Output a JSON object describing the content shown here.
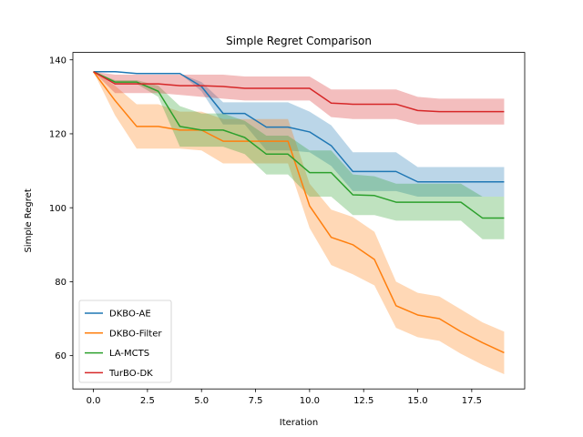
{
  "chart_data": {
    "type": "line",
    "title": "Simple Regret Comparison",
    "xlabel": "Iteration",
    "ylabel": "Simple Regret",
    "xlim": [
      -0.95,
      19.95
    ],
    "ylim": [
      51,
      142
    ],
    "xticks": [
      0.0,
      2.5,
      5.0,
      7.5,
      10.0,
      12.5,
      15.0,
      17.5
    ],
    "xtick_labels": [
      "0.0",
      "2.5",
      "5.0",
      "7.5",
      "10.0",
      "12.5",
      "15.0",
      "17.5"
    ],
    "yticks": [
      60,
      80,
      100,
      120,
      140
    ],
    "ytick_labels": [
      "60",
      "80",
      "100",
      "120",
      "140"
    ],
    "grid": false,
    "legend_position": "lower-left",
    "x": [
      0,
      1,
      2,
      3,
      4,
      5,
      6,
      7,
      8,
      9,
      10,
      11,
      12,
      13,
      14,
      15,
      16,
      17,
      18,
      19
    ],
    "series": [
      {
        "name": "DKBO-AE",
        "color": "#1f77b4",
        "values": [
          136.8,
          136.8,
          136.3,
          136.3,
          136.3,
          132.8,
          125.5,
          125.5,
          121.8,
          121.8,
          120.5,
          116.8,
          109.8,
          109.8,
          109.8,
          107.0,
          107.0,
          107.0,
          107.0,
          107.0
        ],
        "upper": [
          136.8,
          136.8,
          136.3,
          136.3,
          136.3,
          134.0,
          128.5,
          128.5,
          128.5,
          128.5,
          126.0,
          122.3,
          115.0,
          115.0,
          115.0,
          111.0,
          111.0,
          111.0,
          111.0,
          111.0
        ],
        "lower": [
          136.8,
          136.8,
          136.3,
          136.3,
          136.3,
          131.5,
          122.5,
          122.5,
          115.5,
          115.5,
          115.0,
          111.3,
          104.5,
          104.5,
          104.5,
          103.0,
          103.0,
          103.0,
          103.0,
          103.0
        ]
      },
      {
        "name": "DKBO-Filter",
        "color": "#ff7f0e",
        "values": [
          136.8,
          129.0,
          122.0,
          122.0,
          121.0,
          121.0,
          118.0,
          118.0,
          118.0,
          118.0,
          100.5,
          92.0,
          90.0,
          86.0,
          73.5,
          71.0,
          70.0,
          66.5,
          63.5,
          60.8
        ],
        "upper": [
          136.8,
          133.0,
          128.0,
          128.0,
          126.0,
          126.0,
          124.0,
          124.0,
          124.0,
          124.0,
          106.5,
          99.5,
          97.5,
          93.5,
          80.0,
          77.0,
          76.0,
          72.5,
          69.0,
          66.5
        ],
        "lower": [
          136.8,
          125.0,
          116.0,
          116.0,
          116.0,
          115.5,
          112.0,
          112.0,
          112.0,
          112.0,
          94.5,
          84.5,
          82.0,
          79.0,
          67.5,
          65.0,
          64.0,
          60.5,
          57.5,
          55.0
        ]
      },
      {
        "name": "LA-MCTS",
        "color": "#2ca02c",
        "values": [
          136.8,
          134.0,
          134.0,
          131.5,
          122.0,
          121.0,
          121.0,
          119.0,
          114.5,
          114.5,
          109.5,
          109.5,
          103.5,
          103.3,
          101.5,
          101.5,
          101.5,
          101.5,
          97.2,
          97.2
        ],
        "upper": [
          136.8,
          134.5,
          134.5,
          133.0,
          127.5,
          125.5,
          125.5,
          123.5,
          119.5,
          119.5,
          115.5,
          115.5,
          109.0,
          108.5,
          106.5,
          106.5,
          106.5,
          106.5,
          103.0,
          103.0
        ],
        "lower": [
          136.8,
          133.5,
          133.5,
          130.0,
          116.5,
          116.5,
          116.5,
          114.5,
          109.0,
          109.0,
          103.0,
          103.0,
          98.0,
          98.0,
          96.5,
          96.5,
          96.5,
          96.5,
          91.5,
          91.5
        ]
      },
      {
        "name": "TurBO-DK",
        "color": "#d62728",
        "values": [
          136.8,
          133.5,
          133.5,
          133.5,
          133.0,
          133.0,
          132.8,
          132.3,
          132.3,
          132.3,
          132.3,
          128.3,
          128.0,
          128.0,
          128.0,
          126.3,
          126.0,
          126.0,
          126.0,
          126.0
        ],
        "upper": [
          136.8,
          136.0,
          136.0,
          136.0,
          136.0,
          136.0,
          136.0,
          135.5,
          135.5,
          135.5,
          135.5,
          132.0,
          132.0,
          132.0,
          132.0,
          130.0,
          129.5,
          129.5,
          129.5,
          129.5
        ],
        "lower": [
          136.8,
          131.0,
          131.0,
          131.0,
          130.5,
          130.0,
          129.5,
          129.0,
          129.0,
          129.0,
          129.0,
          124.5,
          124.0,
          124.0,
          124.0,
          122.5,
          122.5,
          122.5,
          122.5,
          122.5
        ]
      }
    ]
  }
}
